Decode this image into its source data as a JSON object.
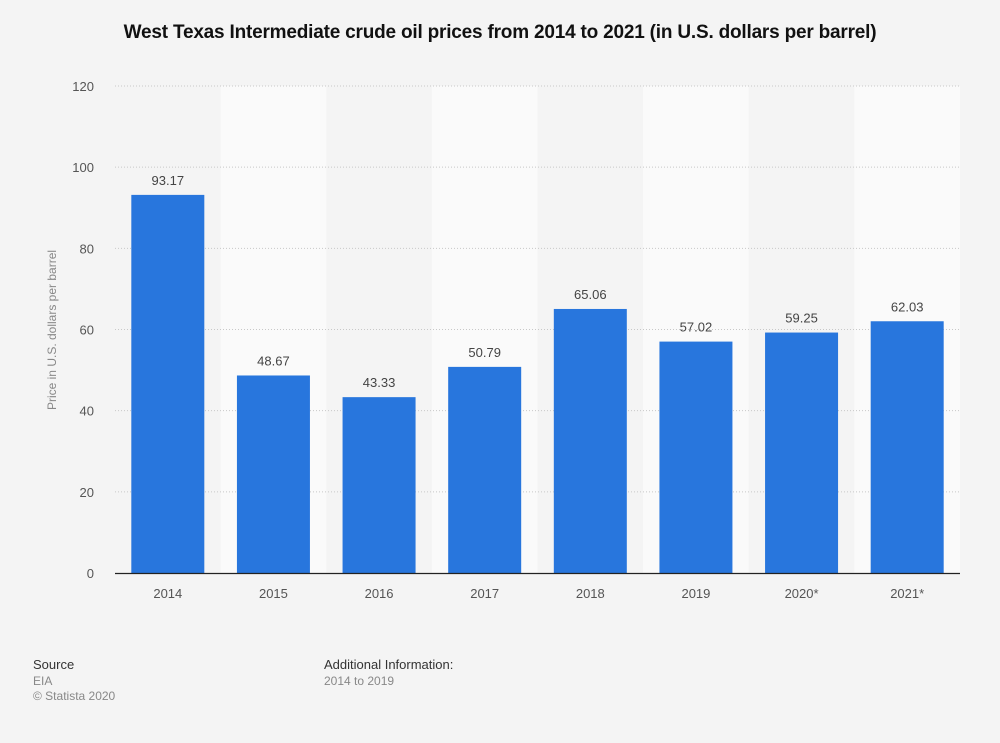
{
  "chart_data": {
    "type": "bar",
    "title": "West Texas Intermediate crude oil prices from 2014 to 2021 (in U.S. dollars per barrel)",
    "xlabel": "",
    "ylabel": "Price in U.S. dollars per barrel",
    "categories": [
      "2014",
      "2015",
      "2016",
      "2017",
      "2018",
      "2019",
      "2020*",
      "2021*"
    ],
    "values": [
      93.17,
      48.67,
      43.33,
      50.79,
      65.06,
      57.02,
      59.25,
      62.03
    ],
    "value_labels": [
      "93.17",
      "48.67",
      "43.33",
      "50.79",
      "65.06",
      "57.02",
      "59.25",
      "62.03"
    ],
    "ylim": [
      0,
      120
    ],
    "yticks": [
      "0",
      "20",
      "40",
      "60",
      "80",
      "100",
      "120"
    ],
    "grid": true,
    "bar_color": "#2876dd"
  },
  "footer": {
    "source_label": "Source",
    "source_value": "EIA",
    "copyright": "© Statista 2020",
    "additional_label": "Additional Information:",
    "additional_value": "2014 to 2019"
  }
}
